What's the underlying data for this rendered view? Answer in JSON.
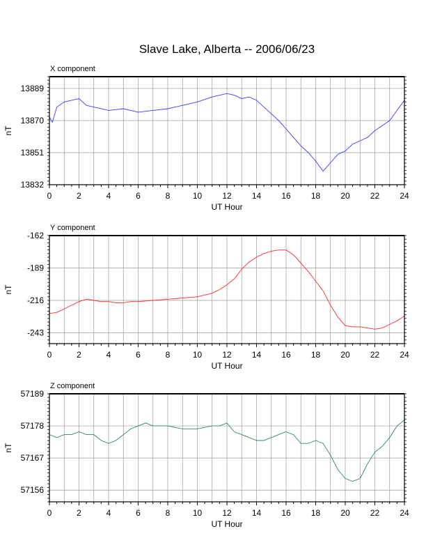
{
  "title": "Slave Lake, Alberta -- 2006/06/23",
  "colors": {
    "x": "#3a3aff",
    "y": "#ff2a2a",
    "z": "#2e8b57",
    "grid": "#9a9a9a"
  },
  "chart_data": [
    {
      "type": "line",
      "component_label": "X component",
      "xlabel": "UT Hour",
      "ylabel": "nT",
      "xlim": [
        0,
        24
      ],
      "ylim": [
        13832,
        13896
      ],
      "xticks": [
        "0",
        "2",
        "4",
        "6",
        "8",
        "10",
        "12",
        "14",
        "16",
        "18",
        "20",
        "22",
        "24"
      ],
      "yticks": [
        "13889",
        "13870",
        "13851",
        "13832"
      ],
      "ytick_values": [
        13889,
        13870,
        13851,
        13832
      ],
      "series": [
        {
          "color": "#3a3aff",
          "x": [
            0,
            0.2,
            0.5,
            1,
            1.5,
            2,
            2.5,
            3,
            4,
            5,
            6,
            7,
            8,
            9,
            10,
            11,
            12,
            12.5,
            13,
            13.5,
            14,
            14.5,
            15,
            15.5,
            16,
            16.5,
            17,
            17.5,
            18,
            18.5,
            19,
            19.5,
            20,
            20.5,
            21,
            21.5,
            22,
            22.5,
            23,
            23.5,
            24
          ],
          "y": [
            13872,
            13869,
            13878,
            13881,
            13882,
            13883,
            13879,
            13878,
            13876,
            13877,
            13875,
            13876,
            13877,
            13879,
            13881,
            13884,
            13886,
            13885,
            13883,
            13884,
            13882,
            13878,
            13874,
            13870,
            13865,
            13860,
            13855,
            13851,
            13846,
            13840,
            13845,
            13850,
            13852,
            13856,
            13858,
            13860,
            13864,
            13867,
            13870,
            13876,
            13882
          ]
        }
      ]
    },
    {
      "type": "line",
      "component_label": "Y component",
      "xlabel": "UT Hour",
      "ylabel": "nT",
      "xlim": [
        0,
        24
      ],
      "ylim": [
        -252,
        -162
      ],
      "xticks": [
        "0",
        "2",
        "4",
        "6",
        "8",
        "10",
        "12",
        "14",
        "16",
        "18",
        "20",
        "22",
        "24"
      ],
      "yticks": [
        "-162",
        "-189",
        "-216",
        "-243"
      ],
      "ytick_values": [
        -162,
        -189,
        -216,
        -243
      ],
      "series": [
        {
          "color": "#ff2a2a",
          "x": [
            0,
            0.5,
            1,
            1.5,
            2,
            2.5,
            3,
            3.5,
            4,
            4.5,
            5,
            5.5,
            6,
            7,
            8,
            9,
            10,
            11,
            11.5,
            12,
            12.5,
            13,
            13.5,
            14,
            14.5,
            15,
            15.5,
            16,
            16.5,
            17,
            17.5,
            18,
            18.5,
            19,
            19.5,
            20,
            20.5,
            21,
            21.5,
            22,
            22.5,
            23,
            23.5,
            24
          ],
          "y": [
            -227,
            -226,
            -223,
            -220,
            -217,
            -215,
            -216,
            -217,
            -217,
            -218,
            -218,
            -217,
            -217,
            -216,
            -215,
            -214,
            -213,
            -210,
            -207,
            -203,
            -198,
            -190,
            -184,
            -180,
            -177,
            -175,
            -174,
            -174,
            -178,
            -185,
            -192,
            -200,
            -208,
            -220,
            -230,
            -237,
            -238,
            -238,
            -239,
            -240,
            -239,
            -236,
            -233,
            -229
          ]
        }
      ]
    },
    {
      "type": "line",
      "component_label": "Z component",
      "xlabel": "UT Hour",
      "ylabel": "nT",
      "xlim": [
        0,
        24
      ],
      "ylim": [
        57152,
        57189
      ],
      "xticks": [
        "0",
        "2",
        "4",
        "6",
        "8",
        "10",
        "12",
        "14",
        "16",
        "18",
        "20",
        "22",
        "24"
      ],
      "yticks": [
        "57189",
        "57178",
        "57167",
        "57156"
      ],
      "ytick_values": [
        57189,
        57178,
        57167,
        57156
      ],
      "series": [
        {
          "color": "#2e8b57",
          "x": [
            0,
            0.5,
            1,
            1.5,
            2,
            2.5,
            3,
            3.5,
            4,
            4.5,
            5,
            5.5,
            6,
            6.5,
            7,
            8,
            9,
            10,
            11,
            11.5,
            12,
            12.5,
            13,
            13.5,
            14,
            14.5,
            15,
            15.5,
            16,
            16.5,
            17,
            17.5,
            18,
            18.5,
            19,
            19.5,
            20,
            20.5,
            21,
            21.5,
            22,
            22.5,
            23,
            23.5,
            24
          ],
          "y": [
            57175,
            57174,
            57175,
            57175,
            57176,
            57175,
            57175,
            57173,
            57172,
            57173,
            57175,
            57177,
            57178,
            57179,
            57178,
            57178,
            57177,
            57177,
            57178,
            57178,
            57179,
            57176,
            57175,
            57174,
            57173,
            57173,
            57174,
            57175,
            57176,
            57175,
            57172,
            57172,
            57173,
            57172,
            57168,
            57163,
            57160,
            57159,
            57160,
            57165,
            57169,
            57171,
            57174,
            57178,
            57180
          ]
        }
      ]
    }
  ]
}
